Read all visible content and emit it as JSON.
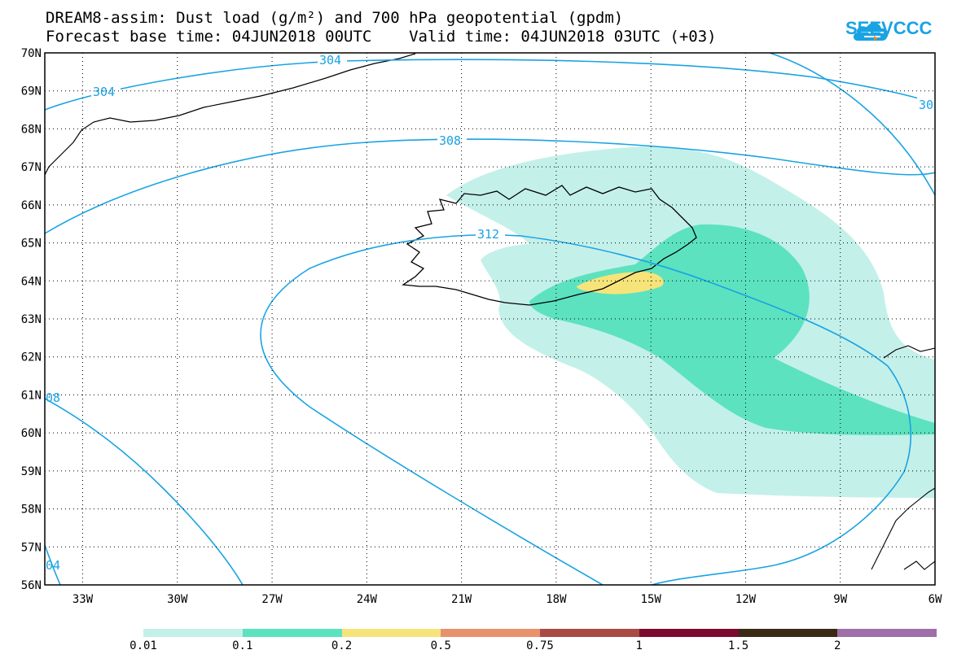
{
  "title": {
    "line1": "DREAM8-assim: Dust load (g/m²) and 700 hPa geopotential (gpdm)",
    "line2": "Forecast base time: 04JUN2018 00UTC    Valid time: 04JUN2018 03UTC (+03)"
  },
  "logo": {
    "text": "SEEVCCC",
    "icon": "cloud-icon",
    "color": "#1aa3e3"
  },
  "map": {
    "lat_labels": [
      "70N",
      "69N",
      "68N",
      "67N",
      "66N",
      "65N",
      "64N",
      "63N",
      "62N",
      "61N",
      "60N",
      "59N",
      "58N",
      "57N",
      "56N"
    ],
    "lon_labels": [
      "33W",
      "30W",
      "27W",
      "24W",
      "21W",
      "18W",
      "15W",
      "12W",
      "9W",
      "6W"
    ],
    "lat_range": [
      56,
      70
    ],
    "lon_range": [
      -34.2,
      -6
    ],
    "grid": "dotted",
    "contour_color": "#1aa3e3",
    "contour_labels": [
      "304",
      "304",
      "30",
      "308",
      "312",
      "08",
      "04"
    ]
  },
  "legend": {
    "thresholds": [
      "0.01",
      "0.1",
      "0.2",
      "0.5",
      "0.75",
      "1",
      "1.5",
      "2"
    ],
    "colors": [
      "#c4f0ea",
      "#5ce2bf",
      "#f6e47a",
      "#e8926c",
      "#a94a45",
      "#7c0a2f",
      "#3a2a14",
      "#9e6fa8"
    ]
  }
}
